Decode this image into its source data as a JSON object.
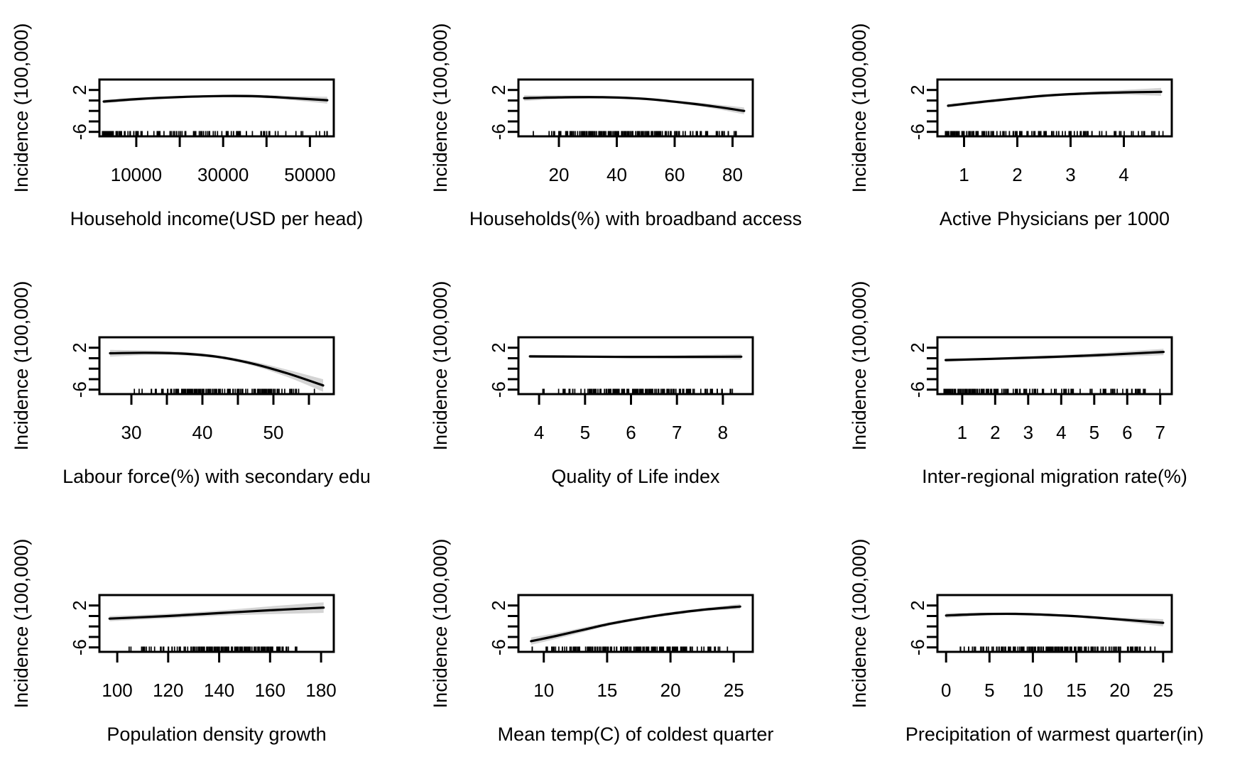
{
  "figure": {
    "background": "#ffffff",
    "line_color": "#000000",
    "band_color": "#d4d4d4",
    "ylabel": "Incidence (100,000)",
    "ylim": [
      -6.85,
      4.0
    ],
    "y_ticks": [
      {
        "v": 2,
        "label": "2"
      },
      {
        "v": 0,
        "label": ""
      },
      {
        "v": -2,
        "label": ""
      },
      {
        "v": -4,
        "label": ""
      },
      {
        "v": -6,
        "label": "-6"
      }
    ]
  },
  "chart_data": [
    {
      "type": "line",
      "id": "household-income",
      "xlabel": "Household income(USD per head)",
      "ylabel": "Incidence (100,000)",
      "xlim": [
        1500,
        55500
      ],
      "x_ticks": [
        {
          "v": 10000,
          "label": "10000"
        },
        {
          "v": 20000,
          "label": ""
        },
        {
          "v": 30000,
          "label": "30000"
        },
        {
          "v": 40000,
          "label": ""
        },
        {
          "v": 50000,
          "label": "50000"
        }
      ],
      "curve": {
        "x": [
          2500,
          10000,
          20000,
          30000,
          38000,
          46000,
          54000
        ],
        "y": [
          -0.2,
          0.25,
          0.65,
          0.85,
          0.8,
          0.45,
          0.05
        ]
      },
      "band": {
        "x": [
          2500,
          10000,
          20000,
          30000,
          38000,
          46000,
          54000
        ],
        "upper": [
          0.15,
          0.55,
          0.9,
          1.1,
          1.1,
          0.85,
          0.7
        ],
        "lower": [
          -0.55,
          -0.05,
          0.4,
          0.6,
          0.5,
          0.05,
          -0.6
        ]
      },
      "rug": {
        "min": 2200,
        "max": 54500,
        "n": 130,
        "bias": "low"
      }
    },
    {
      "type": "line",
      "id": "broadband-access",
      "xlabel": "Households(%) with broadband access",
      "ylabel": "Incidence (100,000)",
      "xlim": [
        6,
        87
      ],
      "x_ticks": [
        {
          "v": 20,
          "label": "20"
        },
        {
          "v": 40,
          "label": "40"
        },
        {
          "v": 60,
          "label": "60"
        },
        {
          "v": 80,
          "label": "80"
        }
      ],
      "curve": {
        "x": [
          8,
          20,
          35,
          50,
          65,
          75,
          84
        ],
        "y": [
          0.45,
          0.6,
          0.62,
          0.3,
          -0.55,
          -1.25,
          -2.0
        ]
      },
      "band": {
        "x": [
          8,
          20,
          35,
          50,
          65,
          75,
          84
        ],
        "upper": [
          1.0,
          0.95,
          0.87,
          0.55,
          -0.25,
          -0.8,
          -1.35
        ],
        "lower": [
          -0.1,
          0.25,
          0.37,
          0.05,
          -0.85,
          -1.7,
          -2.65
        ]
      },
      "rug": {
        "min": 8,
        "max": 85,
        "n": 170,
        "bias": "mid"
      }
    },
    {
      "type": "line",
      "id": "active-physicians",
      "xlabel": "Active Physicians per 1000",
      "ylabel": "Incidence (100,000)",
      "xlim": [
        0.5,
        4.9
      ],
      "x_ticks": [
        {
          "v": 1,
          "label": "1"
        },
        {
          "v": 2,
          "label": "2"
        },
        {
          "v": 3,
          "label": "3"
        },
        {
          "v": 4,
          "label": "4"
        }
      ],
      "curve": {
        "x": [
          0.7,
          1.5,
          2.5,
          3.2,
          4.0,
          4.7
        ],
        "y": [
          -1.0,
          -0.1,
          0.9,
          1.3,
          1.55,
          1.65
        ]
      },
      "band": {
        "x": [
          0.7,
          1.5,
          2.5,
          3.2,
          4.0,
          4.7
        ],
        "upper": [
          -0.65,
          0.2,
          1.15,
          1.6,
          2.0,
          2.4
        ],
        "lower": [
          -1.35,
          -0.4,
          0.65,
          1.0,
          1.1,
          0.9
        ]
      },
      "rug": {
        "min": 0.65,
        "max": 4.75,
        "n": 150,
        "bias": "low"
      }
    },
    {
      "type": "line",
      "id": "labour-force",
      "xlabel": "Labour force(%) with secondary edu",
      "ylabel": "Incidence (100,000)",
      "xlim": [
        25.5,
        58.5
      ],
      "x_ticks": [
        {
          "v": 30,
          "label": "30"
        },
        {
          "v": 35,
          "label": ""
        },
        {
          "v": 40,
          "label": "40"
        },
        {
          "v": 45,
          "label": ""
        },
        {
          "v": 50,
          "label": "50"
        },
        {
          "v": 55,
          "label": ""
        }
      ],
      "curve": {
        "x": [
          27,
          32,
          37,
          42,
          47,
          52,
          57
        ],
        "y": [
          0.95,
          1.05,
          0.9,
          0.3,
          -1.0,
          -2.9,
          -5.2
        ]
      },
      "band": {
        "x": [
          27,
          32,
          37,
          42,
          47,
          52,
          57
        ],
        "upper": [
          1.6,
          1.5,
          1.25,
          0.6,
          -0.6,
          -2.2,
          -4.0
        ],
        "lower": [
          0.3,
          0.6,
          0.55,
          0.0,
          -1.4,
          -3.6,
          -6.4
        ]
      },
      "rug": {
        "min": 27,
        "max": 57,
        "n": 150,
        "bias": "mid"
      }
    },
    {
      "type": "line",
      "id": "quality-of-life",
      "xlabel": "Quality of Life index",
      "ylabel": "Incidence (100,000)",
      "xlim": [
        3.55,
        8.65
      ],
      "x_ticks": [
        {
          "v": 4,
          "label": "4"
        },
        {
          "v": 5,
          "label": "5"
        },
        {
          "v": 6,
          "label": "6"
        },
        {
          "v": 7,
          "label": "7"
        },
        {
          "v": 8,
          "label": "8"
        }
      ],
      "curve": {
        "x": [
          3.8,
          5,
          6,
          7,
          8.4
        ],
        "y": [
          0.35,
          0.3,
          0.25,
          0.25,
          0.3
        ]
      },
      "band": {
        "x": [
          3.8,
          5,
          6,
          7,
          8.4
        ],
        "upper": [
          0.65,
          0.55,
          0.5,
          0.55,
          0.8
        ],
        "lower": [
          0.05,
          0.05,
          0.0,
          -0.05,
          -0.25
        ]
      },
      "rug": {
        "min": 3.8,
        "max": 8.45,
        "n": 160,
        "bias": "mid"
      }
    },
    {
      "type": "line",
      "id": "migration-rate",
      "xlabel": "Inter-regional migration rate(%)",
      "ylabel": "Incidence (100,000)",
      "xlim": [
        0.25,
        7.35
      ],
      "x_ticks": [
        {
          "v": 1,
          "label": "1"
        },
        {
          "v": 2,
          "label": "2"
        },
        {
          "v": 3,
          "label": "3"
        },
        {
          "v": 4,
          "label": "4"
        },
        {
          "v": 5,
          "label": "5"
        },
        {
          "v": 6,
          "label": "6"
        },
        {
          "v": 7,
          "label": "7"
        }
      ],
      "curve": {
        "x": [
          0.5,
          2,
          3.5,
          5,
          6,
          7.1
        ],
        "y": [
          -0.35,
          -0.1,
          0.2,
          0.55,
          0.85,
          1.2
        ]
      },
      "band": {
        "x": [
          0.5,
          2,
          3.5,
          5,
          6,
          7.1
        ],
        "upper": [
          -0.05,
          0.15,
          0.5,
          0.95,
          1.35,
          1.8
        ],
        "lower": [
          -0.65,
          -0.35,
          -0.1,
          0.15,
          0.35,
          0.6
        ]
      },
      "rug": {
        "min": 0.45,
        "max": 7.15,
        "n": 170,
        "bias": "low"
      }
    },
    {
      "type": "line",
      "id": "population-density-growth",
      "xlabel": "Population density growth",
      "ylabel": "Incidence (100,000)",
      "xlim": [
        93,
        185
      ],
      "x_ticks": [
        {
          "v": 100,
          "label": "100"
        },
        {
          "v": 120,
          "label": "120"
        },
        {
          "v": 140,
          "label": "140"
        },
        {
          "v": 160,
          "label": "160"
        },
        {
          "v": 180,
          "label": "180"
        }
      ],
      "curve": {
        "x": [
          97,
          120,
          140,
          160,
          181
        ],
        "y": [
          -0.5,
          0.0,
          0.55,
          1.1,
          1.6
        ]
      },
      "band": {
        "x": [
          97,
          120,
          140,
          160,
          181
        ],
        "upper": [
          0.0,
          0.45,
          1.05,
          1.85,
          2.6
        ],
        "lower": [
          -1.0,
          -0.45,
          0.05,
          0.35,
          0.6
        ]
      },
      "rug": {
        "min": 96,
        "max": 182,
        "n": 150,
        "bias": "mid"
      }
    },
    {
      "type": "line",
      "id": "mean-temp-coldest",
      "xlabel": "Mean temp(C) of coldest quarter",
      "ylabel": "Incidence (100,000)",
      "xlim": [
        8,
        26.5
      ],
      "x_ticks": [
        {
          "v": 10,
          "label": "10"
        },
        {
          "v": 15,
          "label": "15"
        },
        {
          "v": 20,
          "label": "20"
        },
        {
          "v": 25,
          "label": "25"
        }
      ],
      "curve": {
        "x": [
          9,
          11,
          13,
          15,
          17,
          19,
          21,
          23,
          25.5
        ],
        "y": [
          -4.8,
          -3.8,
          -2.7,
          -1.6,
          -0.7,
          0.1,
          0.75,
          1.3,
          1.8
        ]
      },
      "band": {
        "x": [
          9,
          11,
          13,
          15,
          17,
          19,
          21,
          23,
          25.5
        ],
        "upper": [
          -4.1,
          -3.25,
          -2.25,
          -1.25,
          -0.4,
          0.4,
          1.05,
          1.6,
          2.3
        ],
        "lower": [
          -5.5,
          -4.35,
          -3.15,
          -1.95,
          -1.0,
          -0.2,
          0.45,
          1.0,
          1.3
        ]
      },
      "rug": {
        "min": 8.8,
        "max": 25.8,
        "n": 170,
        "bias": "mid"
      }
    },
    {
      "type": "line",
      "id": "precipitation-warmest",
      "xlabel": "Precipitation of warmest quarter(in)",
      "ylabel": "Incidence (100,000)",
      "xlim": [
        -1,
        26
      ],
      "x_ticks": [
        {
          "v": 0,
          "label": "0"
        },
        {
          "v": 5,
          "label": "5"
        },
        {
          "v": 10,
          "label": "10"
        },
        {
          "v": 15,
          "label": "15"
        },
        {
          "v": 20,
          "label": "20"
        },
        {
          "v": 25,
          "label": "25"
        }
      ],
      "curve": {
        "x": [
          0,
          4,
          8,
          12,
          16,
          20,
          25
        ],
        "y": [
          0.1,
          0.35,
          0.4,
          0.2,
          -0.15,
          -0.65,
          -1.3
        ]
      },
      "band": {
        "x": [
          0,
          4,
          8,
          12,
          16,
          20,
          25
        ],
        "upper": [
          0.55,
          0.65,
          0.65,
          0.45,
          0.1,
          -0.3,
          -0.6
        ],
        "lower": [
          -0.35,
          0.05,
          0.15,
          -0.05,
          -0.4,
          -1.0,
          -2.0
        ]
      },
      "rug": {
        "min": 0,
        "max": 25.4,
        "n": 170,
        "bias": "mid"
      }
    }
  ]
}
